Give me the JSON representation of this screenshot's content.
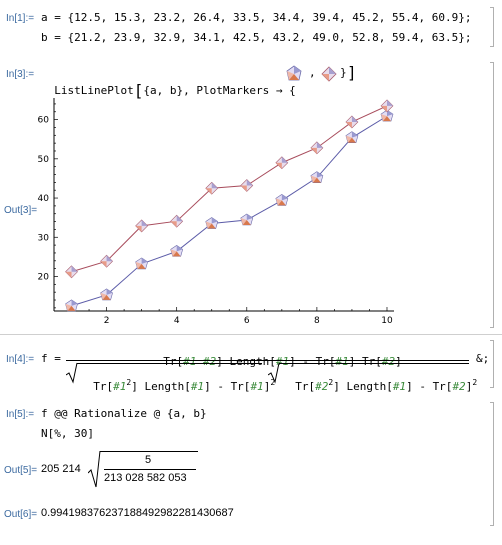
{
  "labels": {
    "in1": "In[1]:=",
    "in3": "In[3]:=",
    "out3": "Out[3]=",
    "in4": "In[4]:=",
    "in5": "In[5]:=",
    "out5": "Out[5]=",
    "out6": "Out[6]="
  },
  "input1": {
    "line_a": "a = {12.5, 15.3, 23.2, 26.4, 33.5, 34.4, 39.4, 45.2, 55.4, 60.9};",
    "line_b": "b = {21.2, 23.9, 32.9, 34.1, 42.5, 43.2, 49.0, 52.8, 59.4, 63.5};"
  },
  "input3": {
    "prefix": "ListLinePlot",
    "args": "{a, b}, PlotMarkers → {",
    "sep": ",",
    "suffix": "}"
  },
  "input4": {
    "lhs": "f =",
    "tail": "&;",
    "num": {
      "tr": "Tr[",
      "s1": "#1",
      "s2": "#2",
      "close": "]",
      "length": "Length[",
      "minus": "-",
      "tr2": "Tr[",
      "tr3": "Tr["
    },
    "den1": {
      "tr": "Tr[",
      "s1": "#1",
      "exp": "2",
      "close": "]",
      "length": "Length[",
      "s1b": "#1",
      "minus": "-",
      "tr2": "Tr[",
      "s1c": "#1",
      "exp2": "2"
    },
    "den2": {
      "tr": "Tr[",
      "s2": "#2",
      "exp": "2",
      "close": "]",
      "length": "Length[",
      "s1": "#1",
      "minus": "-",
      "tr2": "Tr[",
      "s2b": "#2",
      "exp2": "2"
    }
  },
  "input5": {
    "line1": "f @@ Rationalize @ {a, b}",
    "line2": "N[%, 30]"
  },
  "output5": {
    "coef": "205 214",
    "numerator": "5",
    "denominator": "213 028 582 053"
  },
  "output6": {
    "value": "0.994198376237188492982281430687"
  },
  "chart_data": {
    "type": "line",
    "x": [
      1,
      2,
      3,
      4,
      5,
      6,
      7,
      8,
      9,
      10
    ],
    "series": [
      {
        "values": [
          12.5,
          15.3,
          23.2,
          26.4,
          33.5,
          34.4,
          39.4,
          45.2,
          55.4,
          60.9
        ],
        "color": "#5c5ca8"
      },
      {
        "values": [
          21.2,
          23.9,
          32.9,
          34.1,
          42.5,
          43.2,
          49.0,
          52.8,
          59.4,
          63.5
        ],
        "color": "#a84c5c"
      }
    ],
    "x_ticks": [
      2,
      4,
      6,
      8,
      10
    ],
    "y_ticks": [
      20,
      30,
      40,
      50,
      60
    ],
    "xlim": [
      0.5,
      10.2
    ],
    "ylim": [
      11.2,
      65
    ]
  }
}
